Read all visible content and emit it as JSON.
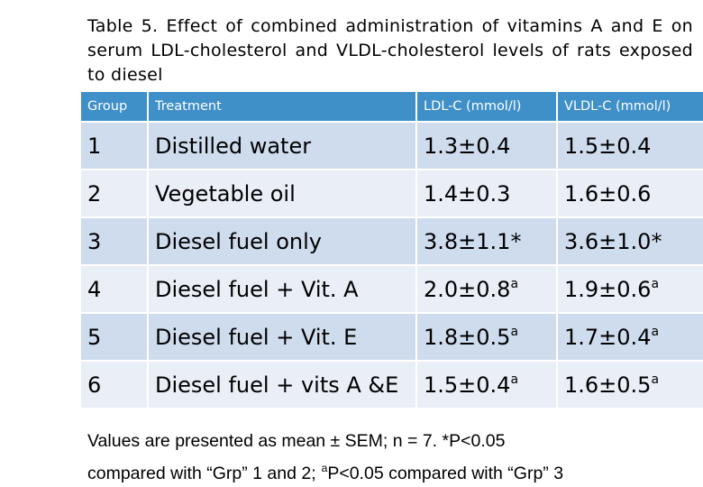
{
  "title": "Table 5. Effect of combined administration of vitamins A and E on serum LDL-cholesterol and VLDL-cholesterol levels of rats exposed to diesel",
  "table": {
    "headers": [
      "Group",
      "Treatment",
      "LDL-C (mmol/l)",
      "VLDL-C (mmol/l)"
    ],
    "rows": [
      {
        "group": "1",
        "treatment": "Distilled water",
        "ldl": "1.3±0.4",
        "ldl_sup": "",
        "vldl": "1.5±0.4",
        "vldl_sup": ""
      },
      {
        "group": "2",
        "treatment": "Vegetable oil",
        "ldl": "1.4±0.3",
        "ldl_sup": "",
        "vldl": "1.6±0.6",
        "vldl_sup": ""
      },
      {
        "group": "3",
        "treatment": "Diesel fuel only",
        "ldl": "3.8±1.1*",
        "ldl_sup": "",
        "vldl": "3.6±1.0*",
        "vldl_sup": ""
      },
      {
        "group": "4",
        "treatment": "Diesel fuel + Vit. A",
        "ldl": "2.0±0.8",
        "ldl_sup": "a",
        "vldl": "1.9±0.6",
        "vldl_sup": "a"
      },
      {
        "group": "5",
        "treatment": "Diesel fuel + Vit. E",
        "ldl": "1.8±0.5",
        "ldl_sup": "a",
        "vldl": "1.7±0.4",
        "vldl_sup": "a"
      },
      {
        "group": "6",
        "treatment": "Diesel fuel + vits A &E",
        "ldl": "1.5±0.4",
        "ldl_sup": "a",
        "vldl": "1.6±0.5",
        "vldl_sup": "a"
      }
    ]
  },
  "footnote": {
    "line1": "Values are presented as mean ± SEM; n = 7. *P<0.05",
    "line2_part1": "compared with “Grp” 1 and 2;",
    "line2_sup": "a",
    "line2_part2": "P<0.05 compared with “Grp” 3"
  },
  "colors": {
    "header_bg": "#3f8fc9",
    "row_odd": "#cfdcee",
    "row_even": "#e9eef7"
  }
}
